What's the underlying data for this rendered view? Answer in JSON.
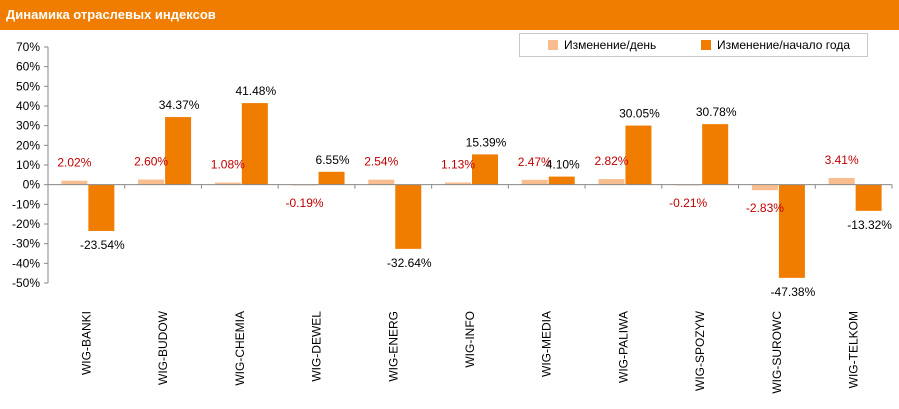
{
  "header": {
    "title": "Динамика отраслевых индексов"
  },
  "colors": {
    "daily": "#f9be8f",
    "ytd": "#f07d00",
    "neg_label": "#c00000",
    "header_bg": "#f07d00"
  },
  "chart_data": {
    "type": "bar",
    "title": "Динамика отраслевых индексов",
    "ylim": [
      -50,
      70
    ],
    "yticks": [
      "70%",
      "60%",
      "50%",
      "40%",
      "30%",
      "20%",
      "10%",
      "0%",
      "-10%",
      "-20%",
      "-30%",
      "-40%",
      "-50%"
    ],
    "categories": [
      "WIG-BANKI",
      "WIG-BUDOW",
      "WIG-CHEMIA",
      "WIG-DEWEL",
      "WIG-ENERG",
      "WIG-INFO",
      "WIG-MEDIA",
      "WIG-PALIWA",
      "WIG-SPOZYW",
      "WIG-SUROWC",
      "WIG-TELKOM"
    ],
    "series": [
      {
        "name": "Изменение/день",
        "values": [
          2.02,
          2.6,
          1.08,
          -0.19,
          2.54,
          1.13,
          2.47,
          2.82,
          -0.21,
          -2.83,
          3.41
        ],
        "labels": [
          "2.02%",
          "2.60%",
          "1.08%",
          "-0.19%",
          "2.54%",
          "1.13%",
          "2.47%",
          "2.82%",
          "-0.21%",
          "-2.83%",
          "3.41%"
        ]
      },
      {
        "name": "Изменение/начало года",
        "values": [
          -23.54,
          34.37,
          41.48,
          6.55,
          -32.64,
          15.39,
          4.1,
          30.05,
          30.78,
          -47.38,
          -13.32
        ],
        "labels": [
          "-23.54%",
          "34.37%",
          "41.48%",
          "6.55%",
          "-32.64%",
          "15.39%",
          "4.10%",
          "30.05%",
          "30.78%",
          "-47.38%",
          "-13.32%"
        ]
      }
    ],
    "legend_position": "top-right",
    "grid": false
  }
}
